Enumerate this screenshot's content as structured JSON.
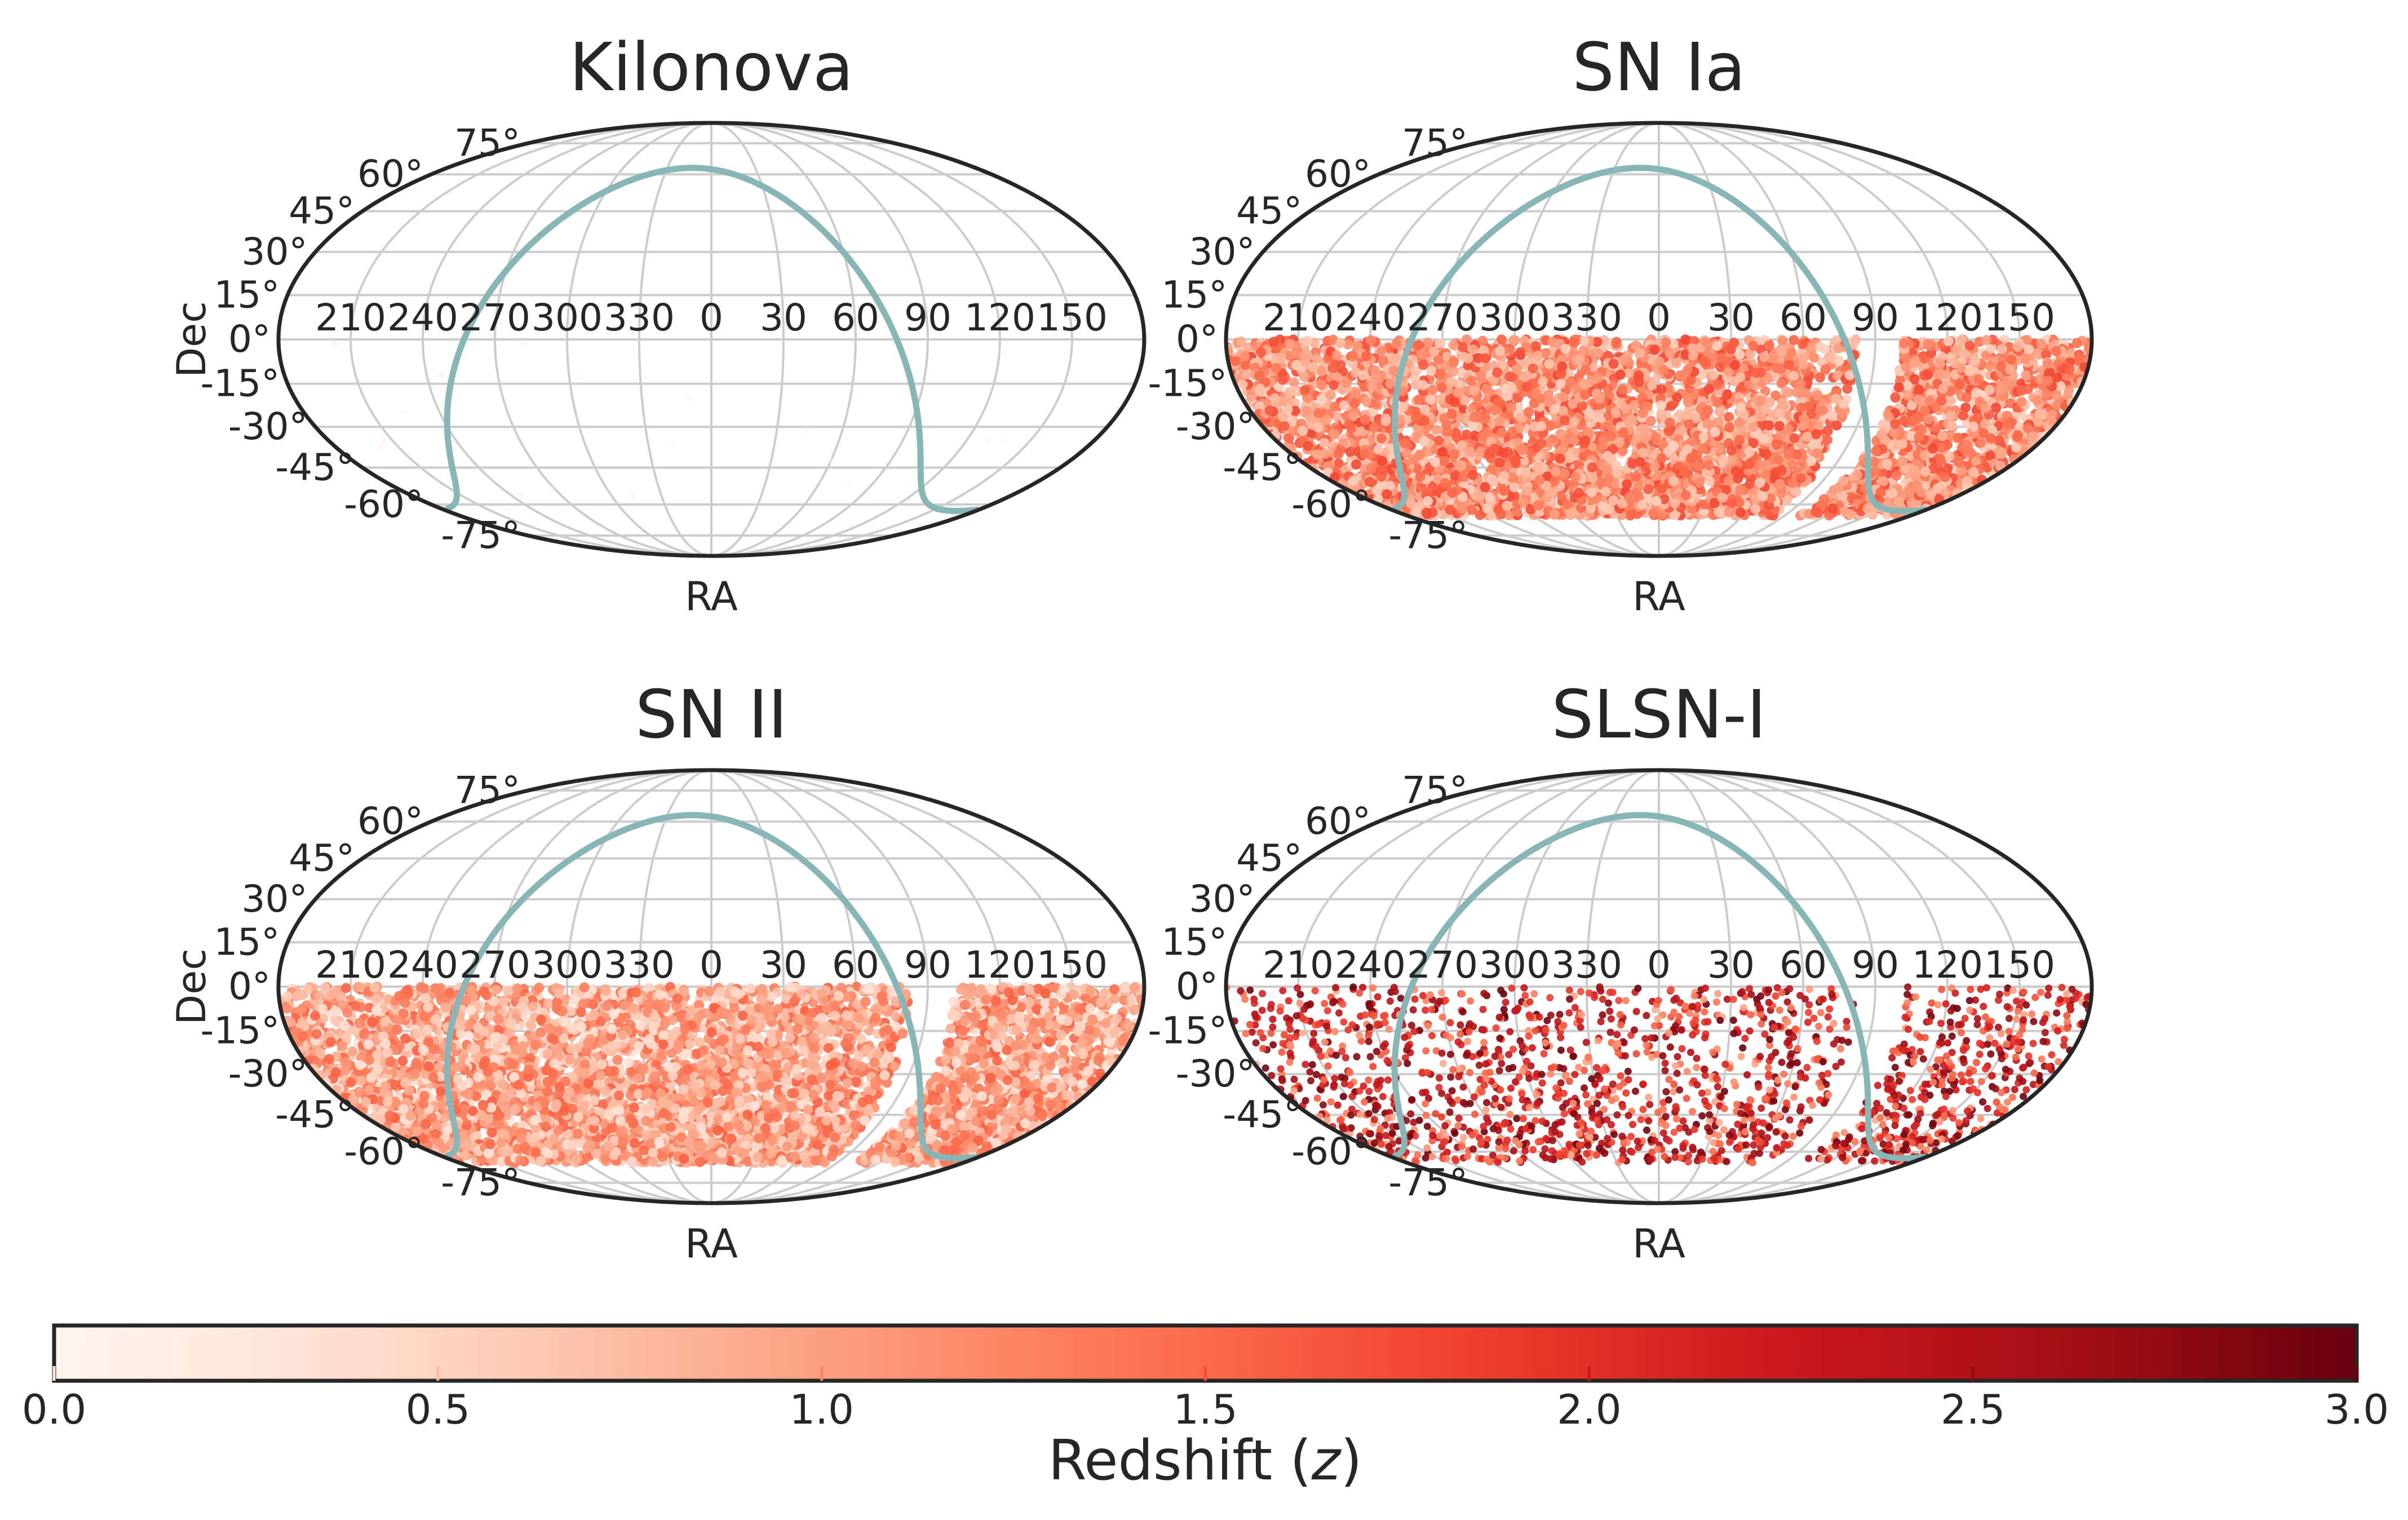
{
  "chart_data": [
    {
      "type": "scatter",
      "projection": "mollweide",
      "title": "Kilonova",
      "xlabel": "RA",
      "ylabel": "Dec",
      "ra_tick_labels": [
        "150",
        "120",
        "90",
        "60",
        "30",
        "0",
        "330",
        "300",
        "270",
        "240",
        "210"
      ],
      "dec_tick_labels": [
        "-75°",
        "-60°",
        "-45°",
        "-30°",
        "-15°",
        "0°",
        "15°",
        "30°",
        "45°",
        "60°",
        "75°"
      ],
      "grid": true,
      "density": "sparse",
      "approx_point_count": 20,
      "dec_range": [
        -65,
        0
      ],
      "ra_ranges": [
        [
          -180,
          180
        ]
      ],
      "redshift_range": [
        0.0,
        0.3
      ],
      "galactic_plane": true
    },
    {
      "type": "scatter",
      "projection": "mollweide",
      "title": "SN Ia",
      "xlabel": "RA",
      "ylabel": "",
      "ra_tick_labels": [
        "150",
        "120",
        "90",
        "60",
        "30",
        "0",
        "330",
        "300",
        "270",
        "240",
        "210"
      ],
      "dec_tick_labels": [
        "-75°",
        "-60°",
        "-45°",
        "-30°",
        "-15°",
        "0°",
        "15°",
        "30°",
        "45°",
        "60°",
        "75°"
      ],
      "grid": true,
      "density": "dense",
      "approx_point_count": 20000,
      "dec_range": [
        -65,
        0
      ],
      "ra_ranges": [
        [
          -180,
          82
        ],
        [
          101,
          180
        ]
      ],
      "redshift_range": [
        0.5,
        1.8
      ],
      "galactic_plane": true
    },
    {
      "type": "scatter",
      "projection": "mollweide",
      "title": "SN II",
      "xlabel": "RA",
      "ylabel": "Dec",
      "ra_tick_labels": [
        "150",
        "120",
        "90",
        "60",
        "30",
        "0",
        "330",
        "300",
        "270",
        "240",
        "210"
      ],
      "dec_tick_labels": [
        "-75°",
        "-60°",
        "-45°",
        "-30°",
        "-15°",
        "0°",
        "15°",
        "30°",
        "45°",
        "60°",
        "75°"
      ],
      "grid": true,
      "density": "dense",
      "approx_point_count": 20000,
      "dec_range": [
        -65,
        0
      ],
      "ra_ranges": [
        [
          -180,
          82
        ],
        [
          101,
          180
        ]
      ],
      "redshift_range": [
        0.3,
        1.6
      ],
      "galactic_plane": true
    },
    {
      "type": "scatter",
      "projection": "mollweide",
      "title": "SLSN-I",
      "xlabel": "RA",
      "ylabel": "",
      "ra_tick_labels": [
        "150",
        "120",
        "90",
        "60",
        "30",
        "0",
        "330",
        "300",
        "270",
        "240",
        "210"
      ],
      "dec_tick_labels": [
        "-75°",
        "-60°",
        "-45°",
        "-30°",
        "-15°",
        "0°",
        "15°",
        "30°",
        "45°",
        "60°",
        "75°"
      ],
      "grid": true,
      "density": "medium",
      "approx_point_count": 1800,
      "dec_range": [
        -65,
        0
      ],
      "ra_ranges": [
        [
          -180,
          82
        ],
        [
          101,
          180
        ]
      ],
      "redshift_range": [
        0.8,
        3.0
      ],
      "galactic_plane": true
    }
  ],
  "colorbar": {
    "label_prefix": "Redshift (",
    "label_var": "z",
    "label_suffix": ")",
    "min": 0.0,
    "max": 3.0,
    "tick_values": [
      0.0,
      0.5,
      1.0,
      1.5,
      2.0,
      2.5,
      3.0
    ],
    "tick_labels": [
      "0.0",
      "0.5",
      "1.0",
      "1.5",
      "2.0",
      "2.5",
      "3.0"
    ],
    "colormap": "Reds"
  },
  "colors": {
    "galactic_plane": "#88b5b5",
    "frame": "#262626",
    "grid": "#cccccc",
    "cmap_low": "#fff5f0",
    "cmap_high": "#67000d"
  }
}
